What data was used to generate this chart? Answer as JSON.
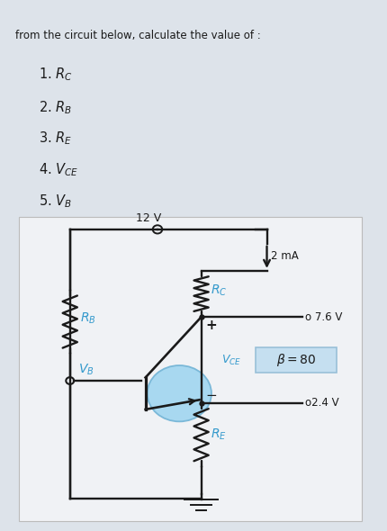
{
  "bg_top": "#dde3ea",
  "bg_circuit": "#e8ecf0",
  "circuit_inner": "#f0f2f5",
  "header_bg": "#b52025",
  "title_text": "from the circuit below, calculate the value of :",
  "items": [
    "1. $R_C$",
    "2. $R_B$",
    "3. $R_E$",
    "4. $V_{CE}$",
    "5. $V_B$"
  ],
  "voltage_supply": "12 V",
  "current_label": "2 mA",
  "rc_label": "$R_C$",
  "rb_label": "$R_B$",
  "re_label": "$R_E$",
  "vce_label": "$V_{CE}$",
  "vb_label": "$V_B$",
  "beta_label": "$\\beta = 80$",
  "v76_label": "o 7.6 V",
  "v24_label": "o2.4 V",
  "transistor_fill": "#a8d8f0",
  "transistor_edge": "#7ab8d8",
  "wire_color": "#1a1a1a",
  "text_color": "#1a1a1a",
  "cyan_color": "#3399cc",
  "beta_box_fill": "#c5dff0",
  "beta_box_edge": "#99c0d8"
}
